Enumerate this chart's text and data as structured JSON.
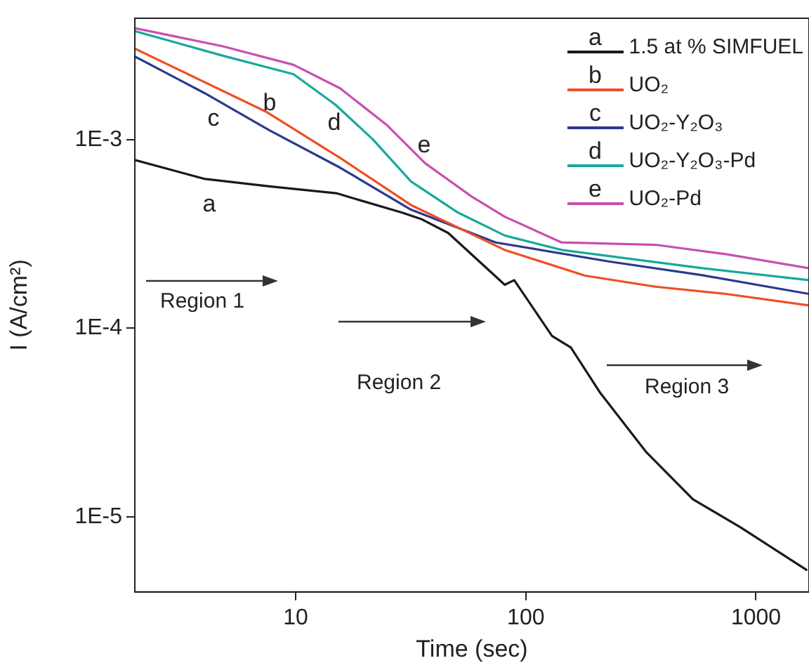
{
  "chart_data": {
    "type": "line",
    "xlabel": "Time (sec)",
    "ylabel": "I (A/cm²)",
    "log": "xy",
    "grid": false,
    "legend": "top right",
    "marker": "none",
    "line_style": "solid",
    "xlim": [
      2,
      1700
    ],
    "ylim": [
      4e-06,
      0.0044
    ],
    "xticks": [
      10,
      100,
      1000
    ],
    "yticks": [
      {
        "value": 1e-05,
        "label": "1E-5"
      },
      {
        "value": 0.0001,
        "label": "1E-4"
      },
      {
        "value": 0.001,
        "label": "1E-3"
      }
    ],
    "series": [
      {
        "name": "1.5 at % SIMFUEL",
        "color": "#1a1a1a",
        "x": [
          2,
          4,
          7.7,
          15,
          29,
          35,
          46,
          81,
          89,
          130,
          157,
          209,
          334,
          532,
          857,
          1670
        ],
        "values": [
          0.00078,
          0.00062,
          0.000565,
          0.00052,
          0.00041,
          0.00038,
          0.00032,
          0.00017,
          0.00018,
          9.1e-05,
          7.9e-05,
          4.6e-05,
          2.2e-05,
          1.24e-05,
          8.8e-06,
          5.2e-06
        ]
      },
      {
        "name": "UO₂",
        "color": "#f04e23",
        "x": [
          2,
          7.4,
          15.6,
          31.7,
          81,
          181,
          366,
          740,
          1700
        ],
        "values": [
          0.00304,
          0.00141,
          0.0008,
          0.00045,
          0.00026,
          0.00019,
          0.000166,
          0.000152,
          0.000132
        ]
      },
      {
        "name": "UO₂-Y₂O₃",
        "color": "#2b3990",
        "x": [
          2,
          4,
          7.7,
          15.6,
          31.7,
          74,
          229,
          585,
          1700
        ],
        "values": [
          0.00276,
          0.00177,
          0.00112,
          0.00071,
          0.000425,
          0.000285,
          0.000226,
          0.000191,
          0.000152
        ]
      },
      {
        "name": "UO₂-Y₂O₃-Pd",
        "color": "#17a99a",
        "x": [
          2,
          4.8,
          9.8,
          14.9,
          21.7,
          31.7,
          50.8,
          81,
          143,
          585,
          1700
        ],
        "values": [
          0.00376,
          0.00279,
          0.00222,
          0.00153,
          0.001,
          0.0006,
          0.00041,
          0.00031,
          0.00026,
          0.000208,
          0.00018
        ]
      },
      {
        "name": "UO₂-Pd",
        "color": "#c84fb0",
        "x": [
          2,
          4.8,
          9.8,
          15.6,
          25,
          36.5,
          58,
          81,
          143,
          366,
          740,
          1700
        ],
        "values": [
          0.0039,
          0.00313,
          0.00249,
          0.00187,
          0.00119,
          0.00075,
          0.0005,
          0.00039,
          0.000285,
          0.000277,
          0.000247,
          0.000208
        ]
      }
    ],
    "annotations": [
      "a",
      "b",
      "c",
      "d",
      "e",
      "Region 1",
      "Region 2",
      "Region 3"
    ]
  }
}
